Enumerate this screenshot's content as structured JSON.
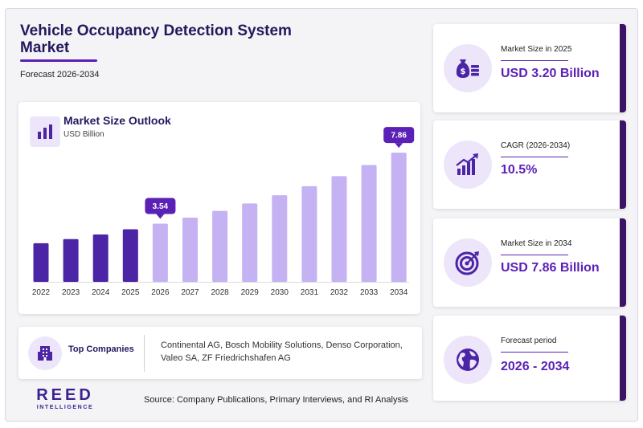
{
  "header": {
    "title_line1": "Vehicle Occupancy Detection System",
    "title_line2": "Market",
    "subtitle": "Forecast 2026-2034"
  },
  "chart_card": {
    "title": "Market Size Outlook",
    "unit": "USD Billion",
    "icon": "bar-chart-icon"
  },
  "chart_data": {
    "type": "bar",
    "title": "Market Size Outlook",
    "ylabel": "USD Billion",
    "categories": [
      "2022",
      "2023",
      "2024",
      "2025",
      "2026",
      "2027",
      "2028",
      "2029",
      "2030",
      "2031",
      "2032",
      "2033",
      "2034"
    ],
    "values": [
      2.35,
      2.6,
      2.88,
      3.2,
      3.54,
      3.91,
      4.32,
      4.77,
      5.27,
      5.82,
      6.43,
      7.11,
      7.86
    ],
    "ylim": [
      0,
      8.5
    ],
    "highlight_labels": [
      {
        "category": "2026",
        "label": "3.54"
      },
      {
        "category": "2034",
        "label": "7.86"
      }
    ],
    "colors": {
      "historical": "#4c25a6",
      "forecast": "#c4b2f3",
      "callout": "#5b21b6"
    }
  },
  "companies": {
    "label": "Top Companies",
    "icon": "building-icon",
    "line1": "Continental AG, Bosch Mobility Solutions, Denso Corporation,",
    "line2": "Valeo SA, ZF Friedrichshafen AG"
  },
  "logo": {
    "main": "REED",
    "sub": "INTELLIGENCE"
  },
  "source": "Source: Company Publications, Primary Interviews, and RI Analysis",
  "stats": [
    {
      "label": "Market Size in 2025",
      "value": "USD 3.20 Billion",
      "icon": "money-bag-icon"
    },
    {
      "label": "CAGR (2026-2034)",
      "value": "10.5%",
      "icon": "growth-chart-icon"
    },
    {
      "label": "Market Size in 2034",
      "value": "USD 7.86 Billion",
      "icon": "target-icon"
    },
    {
      "label": "Forecast period",
      "value": "2026 - 2034",
      "icon": "globe-icon"
    }
  ]
}
